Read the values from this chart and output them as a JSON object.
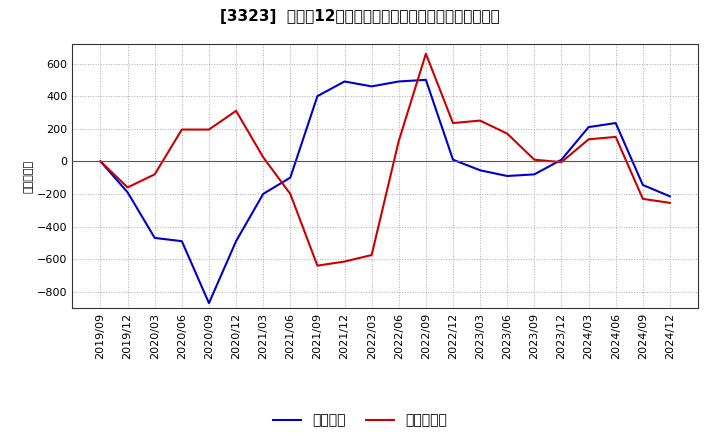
{
  "title": "[3323]  利益だ12か月移動合計の対前年同期増減額の推移",
  "ylabel": "（百万円）",
  "legend_labels": [
    "経常利益",
    "当期純利益"
  ],
  "line_colors": [
    "#0000cc",
    "#cc0000"
  ],
  "x_labels": [
    "2019/09",
    "2019/12",
    "2020/03",
    "2020/06",
    "2020/09",
    "2020/12",
    "2021/03",
    "2021/06",
    "2021/09",
    "2021/12",
    "2022/03",
    "2022/06",
    "2022/09",
    "2022/12",
    "2023/03",
    "2023/06",
    "2023/09",
    "2023/12",
    "2024/03",
    "2024/06",
    "2024/09",
    "2024/12"
  ],
  "operating_profit": [
    0,
    -190,
    -470,
    -490,
    -870,
    -490,
    -200,
    -100,
    400,
    490,
    460,
    490,
    500,
    10,
    -55,
    -90,
    -80,
    10,
    210,
    235,
    -145,
    -215
  ],
  "net_profit": [
    0,
    -160,
    -80,
    195,
    195,
    310,
    25,
    -200,
    -640,
    -615,
    -575,
    125,
    660,
    235,
    250,
    170,
    10,
    -5,
    135,
    150,
    -230,
    -255
  ],
  "ylim": [
    -900,
    720
  ],
  "yticks": [
    -800,
    -600,
    -400,
    -200,
    0,
    200,
    400,
    600
  ],
  "background_color": "#ffffff",
  "plot_bg_color": "#ffffff",
  "grid_color": "#aaaaaa",
  "title_fontsize": 11,
  "axis_fontsize": 8,
  "legend_fontsize": 10
}
